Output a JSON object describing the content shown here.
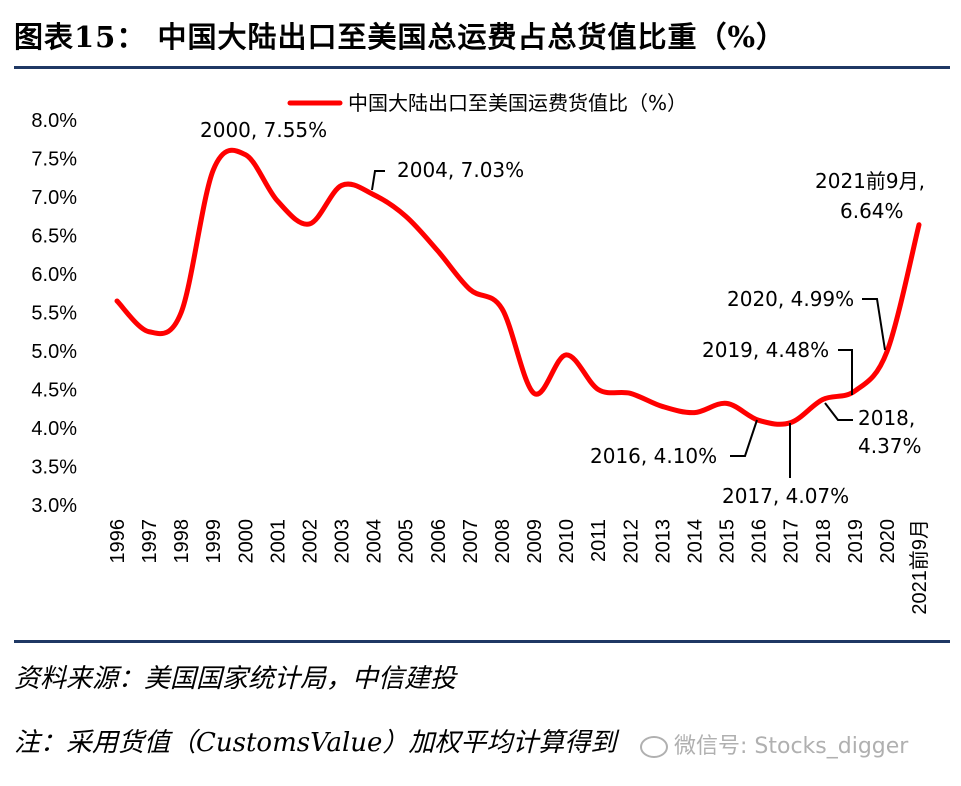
{
  "page": {
    "title": "图表15：   中国大陆出口至美国总运费占总货值比重（%）",
    "source": "资料来源：美国国家统计局，中信建投",
    "note": "注：采用货值（CustomsValue）加权平均计算得到",
    "watermark": "微信号: Stocks_digger",
    "watermark_icon": "wechat-icon"
  },
  "chart_data": {
    "type": "line",
    "x": [
      "1996",
      "1997",
      "1998",
      "1999",
      "2000",
      "2001",
      "2002",
      "2003",
      "2004",
      "2005",
      "2006",
      "2007",
      "2008",
      "2009",
      "2010",
      "2011",
      "2012",
      "2013",
      "2014",
      "2015",
      "2016",
      "2017",
      "2018",
      "2019",
      "2020",
      "2021前9月"
    ],
    "series": [
      {
        "name": "中国大陆出口至美国运费货值比（%）",
        "color": "#ff0000",
        "values": [
          5.65,
          5.25,
          5.5,
          7.35,
          7.55,
          6.95,
          6.65,
          7.15,
          7.03,
          6.75,
          6.3,
          5.8,
          5.55,
          4.45,
          4.95,
          4.5,
          4.45,
          4.28,
          4.2,
          4.32,
          4.1,
          4.07,
          4.37,
          4.48,
          4.99,
          6.64
        ]
      }
    ],
    "yticks": [
      "3.0%",
      "3.5%",
      "4.0%",
      "4.5%",
      "5.0%",
      "5.5%",
      "6.0%",
      "6.5%",
      "7.0%",
      "7.5%",
      "8.0%"
    ],
    "ylim": [
      3.0,
      8.0
    ],
    "legend": "top",
    "grid": false,
    "annotations": [
      {
        "text": "2000, 7.55%"
      },
      {
        "text": "2004, 7.03%"
      },
      {
        "text": "2016, 4.10%"
      },
      {
        "text": "2017, 4.07%"
      },
      {
        "text": "2018,"
      },
      {
        "text": "4.37%"
      },
      {
        "text": "2019, 4.48%"
      },
      {
        "text": "2020, 4.99%"
      },
      {
        "text": "2021前9月,"
      },
      {
        "text": "6.64%"
      }
    ]
  }
}
